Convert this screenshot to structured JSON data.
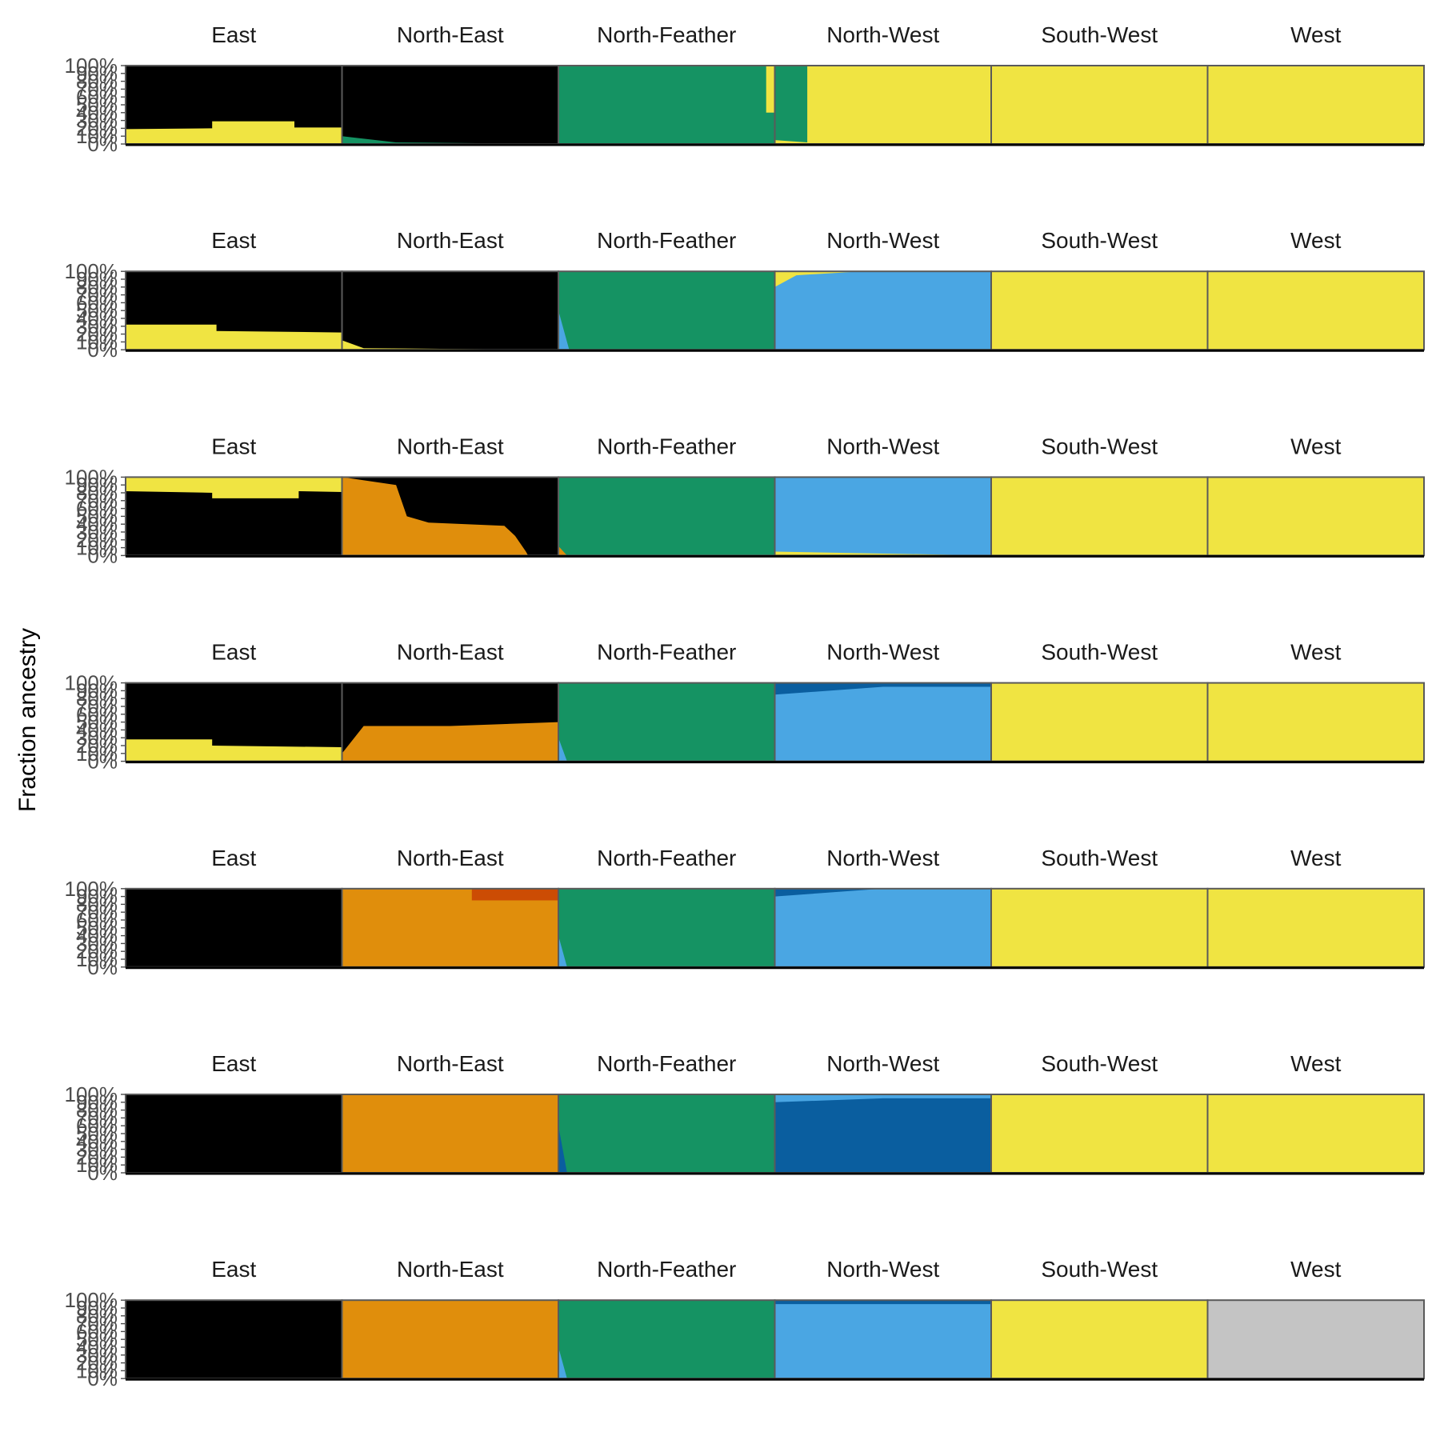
{
  "colors": {
    "black": "#000000",
    "yellow": "#F0E442",
    "green": "#159363",
    "sky": "#4AA6E3",
    "orange": "#E08E0C",
    "vermilion": "#CC4C04",
    "blue": "#0A5E9F",
    "pink": "#CC79A7",
    "grey": "#C4C4C4",
    "frame": "#5a5a5a",
    "tick_text": "#4d4d4d",
    "strip_text": "#1a1a1a"
  },
  "chart_data": {
    "type": "bar",
    "stacked": true,
    "ylabel": "Fraction ancestry",
    "ylim": [
      0,
      1
    ],
    "y_ticks": [
      "0%",
      "10%",
      "20%",
      "30%",
      "40%",
      "50%",
      "60%",
      "70%",
      "80%",
      "90%",
      "100%"
    ],
    "groups": [
      "East",
      "North-East",
      "North-Feather",
      "North-West",
      "South-West",
      "West"
    ],
    "panels": [
      {
        "k": 2,
        "groups": {
          "East": [
            {
              "f": 0.0,
              "c": "yellow",
              "y": 0.19
            },
            {
              "f": 0.4,
              "c": "yellow",
              "y": 0.2
            },
            {
              "f": 0.4,
              "c": "yellow",
              "y": 0.29
            },
            {
              "f": 0.78,
              "c": "yellow",
              "y": 0.29
            },
            {
              "f": 0.78,
              "c": "yellow",
              "y": 0.21
            },
            {
              "f": 1.0,
              "c": "yellow",
              "y": 0.21
            }
          ],
          "North-East": [
            {
              "f": 0.0,
              "c": "green",
              "y": 0.1
            },
            {
              "f": 0.25,
              "c": "green",
              "y": 0.02
            },
            {
              "f": 1.0,
              "c": "green",
              "y": 0.0
            }
          ],
          "North-Feather": [
            {
              "f": 0.0,
              "c": "green",
              "y": 1.0
            },
            {
              "f": 0.96,
              "c": "green",
              "y": 1.0
            },
            {
              "f": 0.96,
              "c": "green",
              "y": 0.4
            },
            {
              "f": 1.0,
              "c": "green",
              "y": 0.4
            }
          ],
          "North-West": [
            {
              "f": 0.0,
              "c": "yellow",
              "y": 0.05
            },
            {
              "f": 0.15,
              "c": "yellow",
              "y": 0.02
            },
            {
              "f": 0.15,
              "c": "yellow",
              "y": 1.0
            },
            {
              "f": 1.0,
              "c": "yellow",
              "y": 1.0
            }
          ],
          "South-West": [
            {
              "f": 0.0,
              "c": "yellow",
              "y": 1.0
            },
            {
              "f": 1.0,
              "c": "yellow",
              "y": 1.0
            }
          ],
          "West": [
            {
              "f": 0.0,
              "c": "yellow",
              "y": 1.0
            },
            {
              "f": 1.0,
              "c": "yellow",
              "y": 1.0
            }
          ]
        },
        "fill": {
          "East": "black",
          "North-East": "black",
          "North-Feather": "yellow",
          "North-West": "green",
          "South-West": "yellow",
          "West": "yellow"
        }
      },
      {
        "k": 3,
        "groups": {
          "East": [
            {
              "f": 0.0,
              "c": "yellow",
              "y": 0.32
            },
            {
              "f": 0.42,
              "c": "yellow",
              "y": 0.32
            },
            {
              "f": 0.42,
              "c": "yellow",
              "y": 0.24
            },
            {
              "f": 1.0,
              "c": "yellow",
              "y": 0.22
            }
          ],
          "North-East": [
            {
              "f": 0.0,
              "c": "yellow",
              "y": 0.12
            },
            {
              "f": 0.1,
              "c": "yellow",
              "y": 0.02
            },
            {
              "f": 1.0,
              "c": "yellow",
              "y": 0.0
            }
          ],
          "North-Feather": [
            {
              "f": 0.0,
              "c": "sky",
              "y": 0.5
            },
            {
              "f": 0.05,
              "c": "sky",
              "y": 0.0
            },
            {
              "f": 1.0,
              "c": "sky",
              "y": 0.0
            }
          ],
          "North-West": [
            {
              "f": 0.0,
              "c": "sky",
              "y": 0.8
            },
            {
              "f": 0.1,
              "c": "sky",
              "y": 0.95
            },
            {
              "f": 0.4,
              "c": "sky",
              "y": 1.0
            },
            {
              "f": 1.0,
              "c": "sky",
              "y": 1.0
            }
          ],
          "South-West": [
            {
              "f": 0.0,
              "c": "yellow",
              "y": 1.0
            },
            {
              "f": 1.0,
              "c": "yellow",
              "y": 1.0
            }
          ],
          "West": [
            {
              "f": 0.0,
              "c": "yellow",
              "y": 1.0
            },
            {
              "f": 1.0,
              "c": "yellow",
              "y": 1.0
            }
          ]
        },
        "fill": {
          "East": "black",
          "North-East": "black",
          "North-Feather": "green",
          "North-West": "yellow",
          "South-West": "yellow",
          "West": "yellow"
        }
      },
      {
        "k": 4,
        "groups": {
          "East": [
            {
              "f": 0.0,
              "c": "black",
              "y": 0.82
            },
            {
              "f": 0.4,
              "c": "black",
              "y": 0.8
            },
            {
              "f": 0.4,
              "c": "black",
              "y": 0.73
            },
            {
              "f": 0.8,
              "c": "black",
              "y": 0.73
            },
            {
              "f": 0.8,
              "c": "black",
              "y": 0.82
            },
            {
              "f": 1.0,
              "c": "black",
              "y": 0.81
            }
          ],
          "North-East": [
            {
              "f": 0.0,
              "c": "orange",
              "y": 1.0
            },
            {
              "f": 0.25,
              "c": "orange",
              "y": 0.9
            },
            {
              "f": 0.3,
              "c": "orange",
              "y": 0.5
            },
            {
              "f": 0.4,
              "c": "orange",
              "y": 0.42
            },
            {
              "f": 0.75,
              "c": "orange",
              "y": 0.38
            },
            {
              "f": 0.8,
              "c": "orange",
              "y": 0.25
            },
            {
              "f": 0.85,
              "c": "orange",
              "y": 0.05
            },
            {
              "f": 0.86,
              "c": "orange",
              "y": 0.0
            },
            {
              "f": 1.0,
              "c": "orange",
              "y": 0.0
            }
          ],
          "North-Feather": [
            {
              "f": 0.0,
              "c": "orange",
              "y": 0.12
            },
            {
              "f": 0.04,
              "c": "orange",
              "y": 0.0
            },
            {
              "f": 1.0,
              "c": "orange",
              "y": 0.0
            }
          ],
          "North-West": [
            {
              "f": 0.0,
              "c": "yellow",
              "y": 0.05
            },
            {
              "f": 0.4,
              "c": "yellow",
              "y": 0.03
            },
            {
              "f": 1.0,
              "c": "yellow",
              "y": 0.0
            }
          ],
          "South-West": [
            {
              "f": 0.0,
              "c": "yellow",
              "y": 1.0
            },
            {
              "f": 1.0,
              "c": "yellow",
              "y": 1.0
            }
          ],
          "West": [
            {
              "f": 0.0,
              "c": "yellow",
              "y": 1.0
            },
            {
              "f": 1.0,
              "c": "yellow",
              "y": 1.0
            }
          ]
        },
        "fill": {
          "East": "yellow",
          "North-East": "black",
          "North-Feather": "green",
          "North-West": "sky",
          "South-West": "yellow",
          "West": "yellow"
        }
      },
      {
        "k": 5,
        "groups": {
          "East": [
            {
              "f": 0.0,
              "c": "yellow",
              "y": 0.28
            },
            {
              "f": 0.4,
              "c": "yellow",
              "y": 0.28
            },
            {
              "f": 0.4,
              "c": "yellow",
              "y": 0.2
            },
            {
              "f": 1.0,
              "c": "yellow",
              "y": 0.18
            }
          ],
          "North-East": [
            {
              "f": 0.0,
              "c": "orange",
              "y": 0.1
            },
            {
              "f": 0.1,
              "c": "orange",
              "y": 0.45
            },
            {
              "f": 0.5,
              "c": "orange",
              "y": 0.45
            },
            {
              "f": 1.0,
              "c": "orange",
              "y": 0.5
            }
          ],
          "North-Feather": [
            {
              "f": 0.0,
              "c": "sky",
              "y": 0.3
            },
            {
              "f": 0.04,
              "c": "sky",
              "y": 0.0
            },
            {
              "f": 1.0,
              "c": "sky",
              "y": 0.0
            }
          ],
          "North-West": [
            {
              "f": 0.0,
              "c": "sky",
              "y": 0.85
            },
            {
              "f": 0.5,
              "c": "sky",
              "y": 0.95
            },
            {
              "f": 1.0,
              "c": "sky",
              "y": 0.95
            }
          ],
          "South-West": [
            {
              "f": 0.0,
              "c": "yellow",
              "y": 1.0
            },
            {
              "f": 1.0,
              "c": "yellow",
              "y": 1.0
            }
          ],
          "West": [
            {
              "f": 0.0,
              "c": "yellow",
              "y": 1.0
            },
            {
              "f": 1.0,
              "c": "yellow",
              "y": 1.0
            }
          ]
        },
        "fill": {
          "East": "black",
          "North-East": "black",
          "North-Feather": "green",
          "North-West": "blue",
          "South-West": "yellow",
          "West": "yellow"
        }
      },
      {
        "k": 6,
        "groups": {
          "East": [
            {
              "f": 0.0,
              "c": "black",
              "y": 1.0
            },
            {
              "f": 1.0,
              "c": "black",
              "y": 1.0
            }
          ],
          "North-East": [
            {
              "f": 0.0,
              "c": "orange",
              "y": 1.0
            },
            {
              "f": 0.6,
              "c": "orange",
              "y": 1.0
            },
            {
              "f": 0.6,
              "c": "orange",
              "y": 0.85
            },
            {
              "f": 1.0,
              "c": "orange",
              "y": 0.85
            }
          ],
          "North-Feather": [
            {
              "f": 0.0,
              "c": "sky",
              "y": 0.4
            },
            {
              "f": 0.04,
              "c": "sky",
              "y": 0.0
            },
            {
              "f": 1.0,
              "c": "sky",
              "y": 0.0
            }
          ],
          "North-West": [
            {
              "f": 0.0,
              "c": "sky",
              "y": 0.9
            },
            {
              "f": 0.5,
              "c": "sky",
              "y": 1.0
            },
            {
              "f": 1.0,
              "c": "sky",
              "y": 1.0
            }
          ],
          "South-West": [
            {
              "f": 0.0,
              "c": "yellow",
              "y": 1.0
            },
            {
              "f": 1.0,
              "c": "yellow",
              "y": 1.0
            }
          ],
          "West": [
            {
              "f": 0.0,
              "c": "yellow",
              "y": 1.0
            },
            {
              "f": 1.0,
              "c": "yellow",
              "y": 1.0
            }
          ]
        },
        "fill": {
          "East": "black",
          "North-East": "vermilion",
          "North-Feather": "green",
          "North-West": "blue",
          "South-West": "yellow",
          "West": "yellow"
        }
      },
      {
        "k": 7,
        "groups": {
          "East": [
            {
              "f": 0.0,
              "c": "black",
              "y": 1.0
            },
            {
              "f": 1.0,
              "c": "black",
              "y": 1.0
            }
          ],
          "North-East": [
            {
              "f": 0.0,
              "c": "orange",
              "y": 1.0
            },
            {
              "f": 0.6,
              "c": "orange",
              "y": 1.0
            },
            {
              "f": 1.0,
              "c": "orange",
              "y": 1.0
            }
          ],
          "North-Feather": [
            {
              "f": 0.0,
              "c": "blue",
              "y": 0.6
            },
            {
              "f": 0.04,
              "c": "blue",
              "y": 0.0
            },
            {
              "f": 1.0,
              "c": "blue",
              "y": 0.0
            }
          ],
          "North-West": [
            {
              "f": 0.0,
              "c": "blue",
              "y": 0.9
            },
            {
              "f": 0.5,
              "c": "blue",
              "y": 0.95
            },
            {
              "f": 1.0,
              "c": "blue",
              "y": 0.95
            }
          ],
          "South-West": [
            {
              "f": 0.0,
              "c": "yellow",
              "y": 1.0
            },
            {
              "f": 1.0,
              "c": "yellow",
              "y": 1.0
            }
          ],
          "West": [
            {
              "f": 0.0,
              "c": "yellow",
              "y": 1.0
            },
            {
              "f": 1.0,
              "c": "yellow",
              "y": 1.0
            }
          ]
        },
        "fill": {
          "East": "black",
          "North-East": "vermilion",
          "North-Feather": "green",
          "North-West": "sky",
          "South-West": "yellow",
          "West": "yellow"
        }
      },
      {
        "k": 8,
        "groups": {
          "East": [
            {
              "f": 0.0,
              "c": "black",
              "y": 1.0
            },
            {
              "f": 1.0,
              "c": "black",
              "y": 1.0
            }
          ],
          "North-East": [
            {
              "f": 0.0,
              "c": "orange",
              "y": 1.0
            },
            {
              "f": 0.6,
              "c": "orange",
              "y": 1.0
            },
            {
              "f": 1.0,
              "c": "orange",
              "y": 1.0
            }
          ],
          "North-Feather": [
            {
              "f": 0.0,
              "c": "sky",
              "y": 0.4
            },
            {
              "f": 0.04,
              "c": "sky",
              "y": 0.0
            },
            {
              "f": 1.0,
              "c": "sky",
              "y": 0.0
            }
          ],
          "North-West": [
            {
              "f": 0.0,
              "c": "sky",
              "y": 0.95
            },
            {
              "f": 1.0,
              "c": "sky",
              "y": 0.95
            }
          ],
          "South-West": [
            {
              "f": 0.0,
              "c": "yellow",
              "y": 1.0
            },
            {
              "f": 1.0,
              "c": "yellow",
              "y": 1.0
            }
          ],
          "West": [
            {
              "f": 0.0,
              "c": "grey",
              "y": 1.0
            },
            {
              "f": 1.0,
              "c": "grey",
              "y": 1.0
            }
          ]
        },
        "fill": {
          "East": "black",
          "North-East": "vermilion",
          "North-Feather": "green",
          "North-West": "blue",
          "South-West": "yellow",
          "West": "grey"
        }
      }
    ]
  }
}
